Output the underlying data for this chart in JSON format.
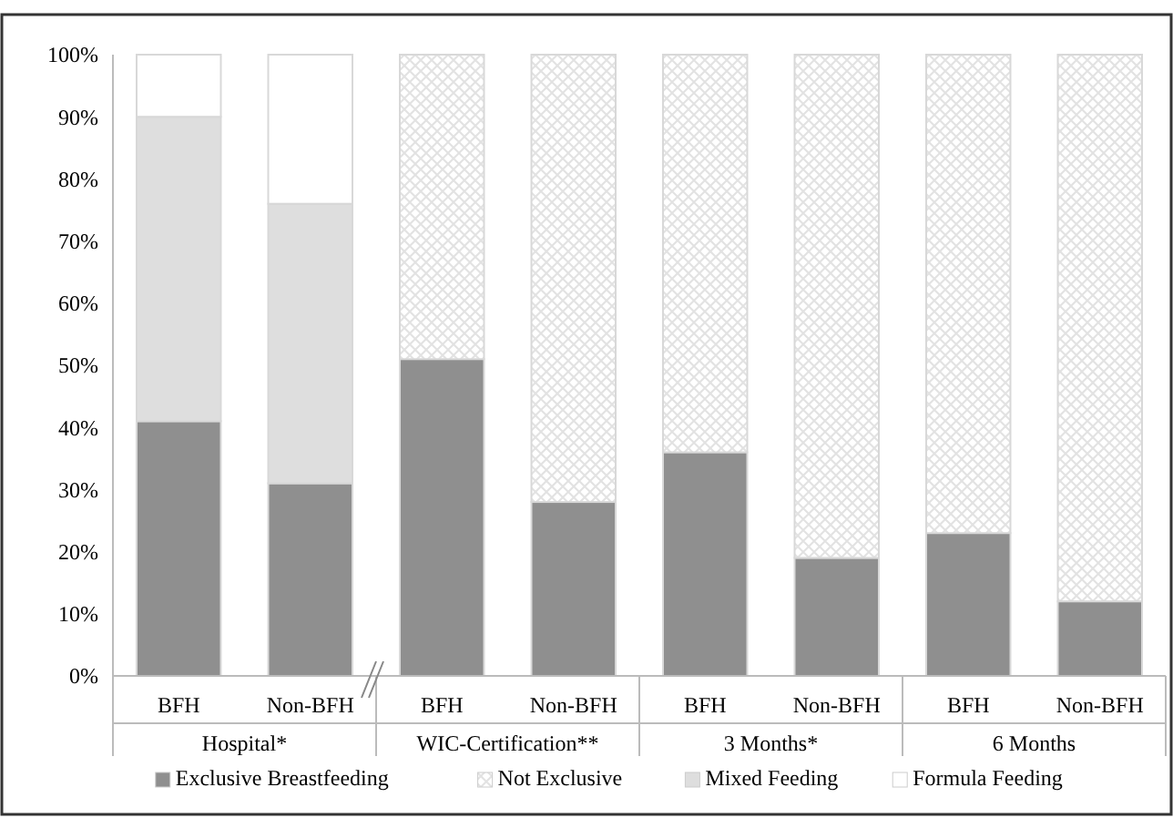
{
  "chart_data": {
    "type": "bar",
    "stacked": true,
    "categories": [
      "BFH",
      "Non-BFH",
      "BFH",
      "Non-BFH",
      "BFH",
      "Non-BFH",
      "BFH",
      "Non-BFH"
    ],
    "series": [
      {
        "name": "Exclusive Breastfeeding",
        "color": "#8f8f8f",
        "values": [
          41,
          31,
          51,
          28,
          36,
          19,
          23,
          12
        ]
      },
      {
        "name": "Not Exclusive",
        "color": "#e2e2e2",
        "values": [
          null,
          null,
          49,
          72,
          64,
          81,
          77,
          88
        ]
      },
      {
        "name": "Mixed Feeding",
        "color": "#dedede",
        "values": [
          49,
          45,
          null,
          null,
          null,
          null,
          null,
          null
        ]
      },
      {
        "name": "Formula Feeding",
        "color": "#ffffff",
        "values": [
          10,
          24,
          null,
          null,
          null,
          null,
          null,
          null
        ]
      }
    ],
    "annotations": [
      "Hospital*",
      "WIC-Certification**",
      "3 Months*",
      "6 Months"
    ],
    "ylim": [
      0,
      100
    ],
    "yticks": [
      {
        "value": 0,
        "label": "0%"
      },
      {
        "value": 10,
        "label": "10%"
      },
      {
        "value": 20,
        "label": "20%"
      },
      {
        "value": 30,
        "label": "30%"
      },
      {
        "value": 40,
        "label": "40%"
      },
      {
        "value": 50,
        "label": "50%"
      },
      {
        "value": 60,
        "label": "60%"
      },
      {
        "value": 70,
        "label": "70%"
      },
      {
        "value": 80,
        "label": "80%"
      },
      {
        "value": 90,
        "label": "90%"
      },
      {
        "value": 100,
        "label": "100%"
      }
    ],
    "legend": "bottom"
  }
}
